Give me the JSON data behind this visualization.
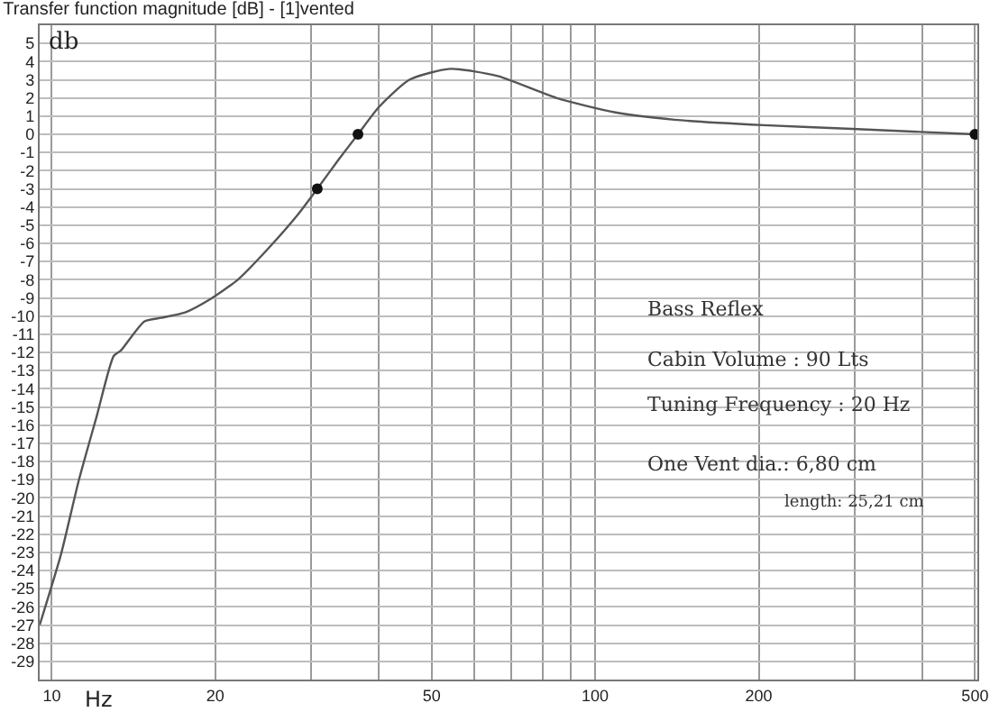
{
  "chart_data": {
    "type": "line",
    "title": "Transfer function magnitude [dB] - [1]vented",
    "xlabel": "Hz",
    "ylabel": "db",
    "log": "x",
    "grid": true,
    "marker": "none",
    "line_style": "solid",
    "xlim": [
      9.5,
      505
    ],
    "ylim": [
      -30,
      6
    ],
    "xticks": [
      10,
      20,
      {
        "value": 30,
        "label": null
      },
      {
        "value": 40,
        "label": null
      },
      50,
      {
        "value": 60,
        "label": null
      },
      {
        "value": 70,
        "label": null
      },
      {
        "value": 80,
        "label": null
      },
      {
        "value": 90,
        "label": null
      },
      100,
      200,
      {
        "value": 300,
        "label": null
      },
      {
        "value": 400,
        "label": null
      },
      500
    ],
    "yticks": [
      -29,
      -28,
      -27,
      -26,
      -25,
      -24,
      -23,
      -22,
      -21,
      -20,
      -19,
      -18,
      -17,
      -16,
      -15,
      -14,
      -13,
      -12,
      -11,
      -10,
      -9,
      -8,
      -7,
      -6,
      -5,
      -4,
      -3,
      -2,
      -1,
      0,
      1,
      2,
      3,
      4,
      5
    ],
    "series": [
      {
        "color": "#555555",
        "x": [
          9.5,
          10.4,
          11.2,
          12.1,
          13.0,
          13.4,
          14.8,
          15.9,
          17.6,
          19.5,
          22.0,
          25.0,
          28.4,
          30.8,
          33.7,
          36.6,
          40.0,
          45.5,
          54.1,
          66.2,
          84.8,
          109,
          140,
          204,
          297,
          500
        ],
        "values": [
          -27,
          -23.1,
          -19.1,
          -15.5,
          -12.2,
          -11.9,
          -10.3,
          -10.1,
          -9.8,
          -9.1,
          -8.0,
          -6.3,
          -4.4,
          -3,
          -1.4,
          0,
          1.5,
          3.0,
          3.6,
          3.2,
          2.0,
          1.2,
          0.8,
          0.5,
          0.3,
          0
        ]
      },
      {
        "type": "scatter",
        "marker": "circle",
        "color": "#111111",
        "x": [
          30.8,
          36.6,
          500
        ],
        "values": [
          -3,
          0,
          0
        ]
      }
    ],
    "annotations": [
      "Bass Reflex",
      "Cabin Volume : 90 Lts",
      "Tuning Frequency : 20 Hz",
      "One Vent dia.: 6,80 cm",
      "length: 25,21 cm"
    ]
  }
}
